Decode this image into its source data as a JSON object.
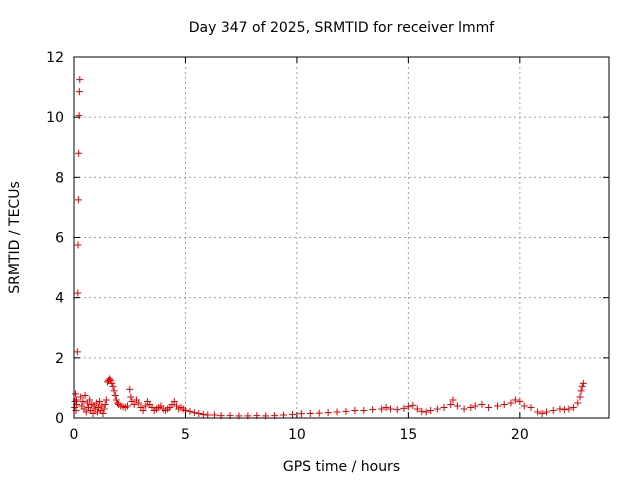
{
  "chart_data": {
    "type": "scatter",
    "title": "Day 347 of 2025, SRMTID for receiver lmmf",
    "xlabel": "GPS time / hours",
    "ylabel": "SRMTID / TECUs",
    "xlim": [
      0,
      24
    ],
    "ylim": [
      0,
      12
    ],
    "x_ticks": [
      "0",
      "5",
      "10",
      "15",
      "20"
    ],
    "y_ticks": [
      "0",
      "2",
      "4",
      "6",
      "8",
      "10",
      "12"
    ],
    "x_tick_values": [
      0,
      5,
      10,
      15,
      20
    ],
    "y_tick_values": [
      0,
      2,
      4,
      6,
      8,
      10,
      12
    ],
    "grid": true,
    "marker": "+",
    "series": [
      {
        "color": "#e00000",
        "points": [
          [
            0.03,
            0.35
          ],
          [
            0.05,
            0.55
          ],
          [
            0.07,
            0.8
          ],
          [
            0.09,
            0.25
          ],
          [
            0.11,
            0.6
          ],
          [
            0.12,
            0.45
          ],
          [
            0.15,
            2.2
          ],
          [
            0.17,
            4.15
          ],
          [
            0.18,
            5.75
          ],
          [
            0.2,
            7.25
          ],
          [
            0.21,
            8.8
          ],
          [
            0.23,
            10.05
          ],
          [
            0.24,
            10.85
          ],
          [
            0.26,
            11.25
          ],
          [
            0.3,
            0.7
          ],
          [
            0.35,
            0.4
          ],
          [
            0.4,
            0.55
          ],
          [
            0.45,
            0.3
          ],
          [
            0.5,
            0.75
          ],
          [
            0.55,
            0.2
          ],
          [
            0.6,
            0.5
          ],
          [
            0.65,
            0.35
          ],
          [
            0.7,
            0.6
          ],
          [
            0.75,
            0.25
          ],
          [
            0.8,
            0.45
          ],
          [
            0.85,
            0.15
          ],
          [
            0.9,
            0.4
          ],
          [
            0.95,
            0.3
          ],
          [
            1.0,
            0.5
          ],
          [
            1.05,
            0.2
          ],
          [
            1.1,
            0.35
          ],
          [
            1.15,
            0.55
          ],
          [
            1.2,
            0.25
          ],
          [
            1.25,
            0.4
          ],
          [
            1.3,
            0.15
          ],
          [
            1.35,
            0.3
          ],
          [
            1.4,
            0.45
          ],
          [
            1.45,
            0.6
          ],
          [
            1.5,
            1.2
          ],
          [
            1.55,
            1.25
          ],
          [
            1.6,
            1.3
          ],
          [
            1.65,
            1.25
          ],
          [
            1.7,
            1.15
          ],
          [
            1.75,
            1.05
          ],
          [
            1.8,
            0.9
          ],
          [
            1.85,
            0.75
          ],
          [
            1.9,
            0.6
          ],
          [
            1.95,
            0.5
          ],
          [
            2.0,
            0.45
          ],
          [
            2.1,
            0.4
          ],
          [
            2.2,
            0.38
          ],
          [
            2.3,
            0.35
          ],
          [
            2.4,
            0.4
          ],
          [
            2.5,
            0.95
          ],
          [
            2.55,
            0.7
          ],
          [
            2.6,
            0.55
          ],
          [
            2.7,
            0.45
          ],
          [
            2.8,
            0.6
          ],
          [
            2.9,
            0.5
          ],
          [
            3.0,
            0.35
          ],
          [
            3.1,
            0.25
          ],
          [
            3.2,
            0.4
          ],
          [
            3.3,
            0.55
          ],
          [
            3.4,
            0.45
          ],
          [
            3.5,
            0.35
          ],
          [
            3.6,
            0.25
          ],
          [
            3.7,
            0.3
          ],
          [
            3.8,
            0.35
          ],
          [
            3.9,
            0.4
          ],
          [
            4.0,
            0.3
          ],
          [
            4.1,
            0.25
          ],
          [
            4.2,
            0.3
          ],
          [
            4.3,
            0.35
          ],
          [
            4.4,
            0.45
          ],
          [
            4.5,
            0.55
          ],
          [
            4.6,
            0.4
          ],
          [
            4.7,
            0.3
          ],
          [
            4.8,
            0.35
          ],
          [
            4.9,
            0.3
          ],
          [
            5.0,
            0.25
          ],
          [
            5.2,
            0.22
          ],
          [
            5.4,
            0.18
          ],
          [
            5.6,
            0.15
          ],
          [
            5.8,
            0.12
          ],
          [
            6.0,
            0.1
          ],
          [
            6.3,
            0.1
          ],
          [
            6.6,
            0.08
          ],
          [
            7.0,
            0.08
          ],
          [
            7.4,
            0.07
          ],
          [
            7.8,
            0.07
          ],
          [
            8.2,
            0.08
          ],
          [
            8.6,
            0.07
          ],
          [
            9.0,
            0.08
          ],
          [
            9.4,
            0.1
          ],
          [
            9.8,
            0.12
          ],
          [
            10.2,
            0.14
          ],
          [
            10.6,
            0.15
          ],
          [
            11.0,
            0.16
          ],
          [
            11.4,
            0.18
          ],
          [
            11.8,
            0.2
          ],
          [
            12.2,
            0.22
          ],
          [
            12.6,
            0.25
          ],
          [
            13.0,
            0.25
          ],
          [
            13.4,
            0.28
          ],
          [
            13.8,
            0.3
          ],
          [
            14.0,
            0.35
          ],
          [
            14.2,
            0.3
          ],
          [
            14.5,
            0.28
          ],
          [
            14.8,
            0.32
          ],
          [
            15.0,
            0.38
          ],
          [
            15.2,
            0.42
          ],
          [
            15.4,
            0.3
          ],
          [
            15.6,
            0.22
          ],
          [
            15.8,
            0.2
          ],
          [
            16.0,
            0.25
          ],
          [
            16.3,
            0.3
          ],
          [
            16.6,
            0.35
          ],
          [
            16.9,
            0.45
          ],
          [
            17.0,
            0.6
          ],
          [
            17.2,
            0.4
          ],
          [
            17.5,
            0.3
          ],
          [
            17.8,
            0.35
          ],
          [
            18.0,
            0.4
          ],
          [
            18.3,
            0.45
          ],
          [
            18.6,
            0.35
          ],
          [
            19.0,
            0.4
          ],
          [
            19.3,
            0.45
          ],
          [
            19.6,
            0.5
          ],
          [
            19.8,
            0.6
          ],
          [
            20.0,
            0.55
          ],
          [
            20.2,
            0.4
          ],
          [
            20.5,
            0.35
          ],
          [
            20.8,
            0.2
          ],
          [
            21.0,
            0.15
          ],
          [
            21.2,
            0.2
          ],
          [
            21.5,
            0.25
          ],
          [
            21.8,
            0.3
          ],
          [
            22.0,
            0.28
          ],
          [
            22.2,
            0.3
          ],
          [
            22.4,
            0.35
          ],
          [
            22.6,
            0.5
          ],
          [
            22.7,
            0.7
          ],
          [
            22.75,
            0.9
          ],
          [
            22.8,
            1.05
          ],
          [
            22.85,
            1.15
          ]
        ]
      }
    ]
  }
}
